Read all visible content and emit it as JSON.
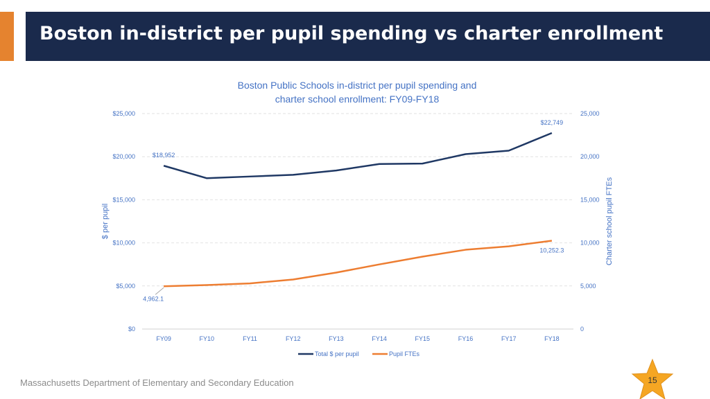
{
  "header": {
    "title": "Boston in-district per pupil spending vs charter enrollment"
  },
  "footer": {
    "organization": "Massachusetts Department of Elementary and Secondary Education",
    "page_number": "15"
  },
  "chart_data": {
    "type": "line",
    "title_lines": [
      "Boston Public Schools in-district per pupil spending and",
      "charter school enrollment: FY09-FY18"
    ],
    "categories": [
      "FY09",
      "FY10",
      "FY11",
      "FY12",
      "FY13",
      "FY14",
      "FY15",
      "FY16",
      "FY17",
      "FY18"
    ],
    "y_left": {
      "label": "$ per pupil",
      "min": 0,
      "max": 25000,
      "ticks": [
        "$0",
        "$5,000",
        "$10,000",
        "$15,000",
        "$20,000",
        "$25,000"
      ]
    },
    "y_right": {
      "label": "Charter school pupil FTEs",
      "min": 0,
      "max": 25000,
      "ticks": [
        "0",
        "5,000",
        "10,000",
        "15,000",
        "20,000",
        "25,000"
      ]
    },
    "grid": true,
    "legend_position": "bottom",
    "series": [
      {
        "name": "Total $ per pupil",
        "axis": "left",
        "color": "#1f3864",
        "values": [
          18952,
          17500,
          17700,
          17900,
          18400,
          19150,
          19200,
          20300,
          20700,
          22749
        ],
        "labels": [
          {
            "index": 0,
            "text": "$18,952"
          },
          {
            "index": 9,
            "text": "$22,749"
          }
        ]
      },
      {
        "name": "Pupil FTEs",
        "axis": "right",
        "color": "#ed7d31",
        "values": [
          4962.1,
          5100,
          5300,
          5750,
          6550,
          7500,
          8400,
          9200,
          9600,
          10252.3
        ],
        "labels": [
          {
            "index": 0,
            "text": "4,962.1"
          },
          {
            "index": 9,
            "text": "10,252.3"
          }
        ]
      }
    ]
  },
  "colors": {
    "title_bar": "#1a2a4c",
    "accent": "#e5832f",
    "chart_title": "#4472c4",
    "axis_text": "#4472c4",
    "star": "#f5a623"
  }
}
